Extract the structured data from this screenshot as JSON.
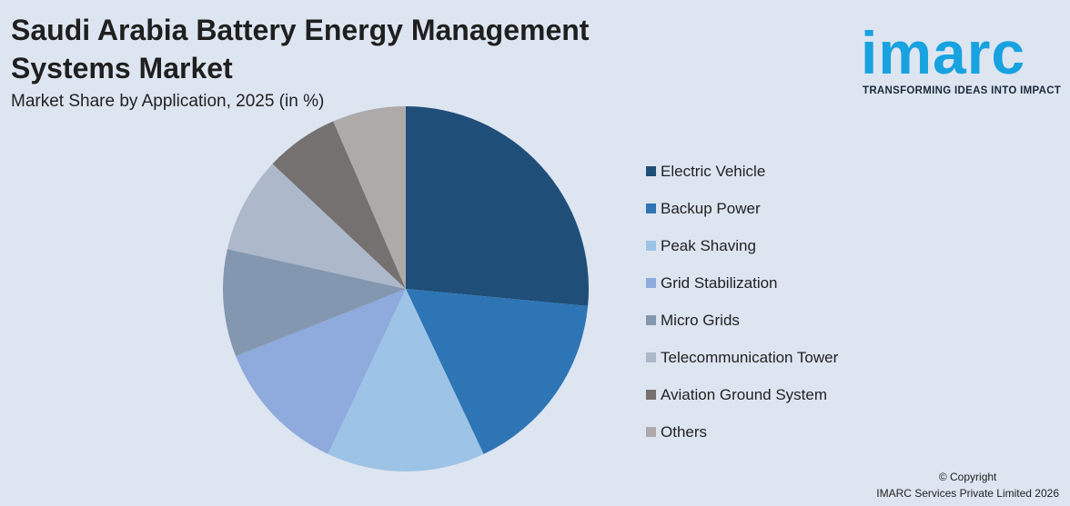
{
  "header": {
    "title_line1": "Saudi Arabia Battery Energy Management",
    "title_line2": "Systems Market",
    "subtitle": "Market Share by Application, 2025 (in %)"
  },
  "logo": {
    "word": "imarc",
    "tagline": "TRANSFORMING IDEAS INTO IMPACT",
    "color": "#18a3e0"
  },
  "chart_data": {
    "type": "pie",
    "title": "Market Share by Application, 2025 (in %)",
    "legend_position": "right",
    "slices": [
      {
        "label": "Electric Vehicle",
        "value": 26.5,
        "color": "#1f4e79"
      },
      {
        "label": "Backup Power",
        "value": 16.5,
        "color": "#2e75b6"
      },
      {
        "label": "Peak Shaving",
        "value": 14.0,
        "color": "#9dc3e6"
      },
      {
        "label": "Grid Stabilization",
        "value": 12.0,
        "color": "#8faadc"
      },
      {
        "label": "Micro Grids",
        "value": 9.5,
        "color": "#8497b0"
      },
      {
        "label": "Telecommunication Tower",
        "value": 8.5,
        "color": "#adb9ca"
      },
      {
        "label": "Aviation Ground System",
        "value": 6.5,
        "color": "#767171"
      },
      {
        "label": "Others",
        "value": 6.5,
        "color": "#aeaaaa"
      }
    ]
  },
  "footer": {
    "copyright_line1": "© Copyright",
    "copyright_line2": "IMARC Services Private Limited 2026"
  }
}
